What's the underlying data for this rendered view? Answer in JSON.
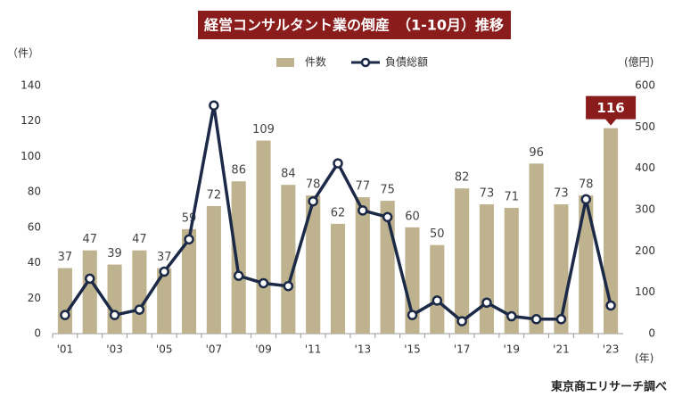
{
  "chart_data": {
    "type": "bar_line",
    "title": "経営コンサルタント業の倒産　（1-10月）推移",
    "y_label": "（件）",
    "y2_label": "(億円)",
    "x_label": "(年)",
    "source": "東京商エリサーチ調べ",
    "categories": [
      "'01",
      null,
      "'03",
      null,
      "'05",
      null,
      "'07",
      null,
      "'09",
      null,
      "'11",
      null,
      "'13",
      null,
      "'15",
      null,
      "'17",
      null,
      "'19",
      null,
      "'21",
      null,
      "'23"
    ],
    "series": [
      {
        "name": "件数",
        "type": "bar",
        "color": "#bfb38f",
        "values": [
          37,
          47,
          39,
          47,
          37,
          59,
          72,
          86,
          109,
          84,
          78,
          62,
          77,
          75,
          60,
          50,
          82,
          73,
          71,
          96,
          73,
          78,
          116
        ]
      },
      {
        "name": "負債総額",
        "type": "line",
        "axis": "y2",
        "color": "#1c2a48",
        "values": [
          45,
          133,
          45,
          58,
          150,
          228,
          552,
          140,
          122,
          115,
          320,
          412,
          298,
          282,
          45,
          80,
          30,
          75,
          42,
          35,
          35,
          325,
          68
        ]
      }
    ],
    "ylim": [
      0,
      140
    ],
    "yticks": [
      0,
      20,
      40,
      60,
      80,
      100,
      120,
      140
    ],
    "y2lim": [
      0,
      600
    ],
    "y2ticks": [
      0,
      100,
      200,
      300,
      400,
      500,
      600
    ]
  }
}
